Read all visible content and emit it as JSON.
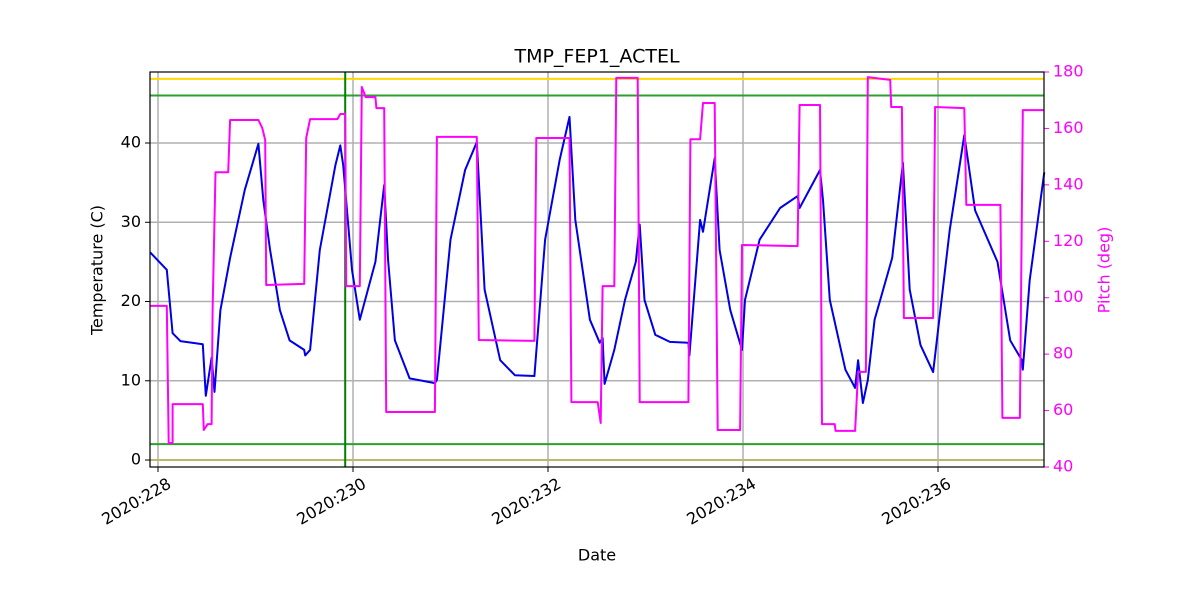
{
  "chart_data": {
    "type": "line",
    "title": "TMP_FEP1_ACTEL",
    "x_label": "Date",
    "y_label": "Temperature (C)",
    "y2_label": "Pitch (deg)",
    "xlim": [
      227.918,
      237.087
    ],
    "ylim": [
      -0.88,
      48.96
    ],
    "y2lim": [
      40,
      180
    ],
    "xticks": [
      {
        "value": 228,
        "label": "2020:228"
      },
      {
        "value": 230,
        "label": "2020:230"
      },
      {
        "value": 232,
        "label": "2020:232"
      },
      {
        "value": 234,
        "label": "2020:234"
      },
      {
        "value": 236,
        "label": "2020:236"
      }
    ],
    "yticks": [
      0,
      10,
      20,
      30,
      40
    ],
    "y2ticks": [
      40,
      60,
      80,
      100,
      120,
      140,
      160,
      180
    ],
    "grid": true,
    "hlines": [
      {
        "value": 48.1,
        "color": "#ffd700"
      },
      {
        "value": 46,
        "color": "#2ca02c"
      },
      {
        "value": 2,
        "color": "#2ca02c"
      },
      {
        "value": 0,
        "color": "#bdb76b"
      }
    ],
    "vlines": [
      {
        "value": 229.92,
        "color": "#008000"
      }
    ],
    "series": [
      {
        "name": "Temperature",
        "color": "#0000e6",
        "x": [
          227.92,
          228.09,
          228.15,
          228.23,
          228.46,
          228.49,
          228.55,
          228.58,
          228.64,
          228.74,
          228.89,
          229.03,
          229.08,
          229.15,
          229.25,
          229.35,
          229.5,
          229.51,
          229.56,
          229.66,
          229.82,
          229.87,
          229.9,
          229.99,
          230.07,
          230.23,
          230.32,
          230.36,
          230.43,
          230.58,
          230.84,
          230.86,
          231.0,
          231.15,
          231.27,
          231.35,
          231.51,
          231.66,
          231.86,
          231.97,
          232.12,
          232.22,
          232.28,
          232.43,
          232.53,
          232.56,
          232.58,
          232.68,
          232.79,
          232.9,
          232.94,
          232.99,
          233.1,
          233.25,
          233.44,
          233.45,
          233.56,
          233.59,
          233.71,
          233.76,
          233.87,
          233.99,
          234.02,
          234.17,
          234.38,
          234.56,
          234.58,
          234.79,
          234.82,
          234.89,
          235.05,
          235.15,
          235.18,
          235.23,
          235.28,
          235.35,
          235.53,
          235.64,
          235.71,
          235.82,
          235.95,
          235.97,
          236.12,
          236.27,
          236.38,
          236.61,
          236.74,
          236.86,
          236.87,
          236.94,
          237.09
        ],
        "values": [
          26.2,
          24.0,
          16.0,
          15.0,
          14.6,
          8.1,
          12.9,
          8.6,
          18.9,
          25.5,
          34.1,
          39.9,
          32.8,
          26.5,
          18.9,
          15.1,
          13.9,
          13.2,
          13.9,
          26.5,
          37.2,
          39.7,
          37.2,
          24.0,
          17.7,
          25.0,
          34.7,
          25.2,
          15.1,
          10.3,
          9.7,
          10.1,
          27.8,
          36.6,
          40.1,
          21.5,
          12.6,
          10.7,
          10.6,
          27.8,
          37.9,
          43.3,
          30.3,
          17.7,
          14.8,
          15.4,
          9.6,
          13.9,
          20.2,
          25.0,
          29.7,
          20.2,
          15.8,
          14.9,
          14.8,
          13.2,
          30.3,
          28.8,
          38.1,
          26.5,
          18.9,
          13.9,
          20.2,
          27.8,
          31.8,
          33.3,
          31.8,
          36.6,
          32.8,
          20.2,
          11.4,
          9.1,
          12.6,
          7.2,
          10.1,
          17.7,
          25.5,
          37.5,
          21.5,
          14.5,
          11.1,
          13.2,
          29.0,
          41.0,
          31.5,
          25.0,
          15.1,
          12.6,
          11.4,
          22.7,
          36.3
        ]
      },
      {
        "name": "Pitch",
        "color": "#ff00ff",
        "axis": "y2",
        "x": [
          227.92,
          228.09,
          228.11,
          228.15,
          228.15,
          228.46,
          228.47,
          228.51,
          228.55,
          228.56,
          228.59,
          228.72,
          228.74,
          229.03,
          229.07,
          229.1,
          229.11,
          229.5,
          229.52,
          229.56,
          229.84,
          229.87,
          229.92,
          229.93,
          230.07,
          230.09,
          230.13,
          230.23,
          230.24,
          230.32,
          230.34,
          230.84,
          230.86,
          231.27,
          231.29,
          231.86,
          231.88,
          232.22,
          232.24,
          232.51,
          232.54,
          232.56,
          232.68,
          232.7,
          232.92,
          232.94,
          233.44,
          233.46,
          233.56,
          233.59,
          233.71,
          233.74,
          233.97,
          233.99,
          234.56,
          234.58,
          234.79,
          234.81,
          234.94,
          234.95,
          235.15,
          235.18,
          235.26,
          235.28,
          235.51,
          235.52,
          235.63,
          235.65,
          235.95,
          235.97,
          236.27,
          236.29,
          236.64,
          236.66,
          236.84,
          236.87,
          237.09
        ],
        "values": [
          97.1,
          97.1,
          48.5,
          48.5,
          62.3,
          62.3,
          53.1,
          55.2,
          55.2,
          95.6,
          144.5,
          144.5,
          163.0,
          163.0,
          160.1,
          155.9,
          104.5,
          104.9,
          156.6,
          163.3,
          163.3,
          165.1,
          165.1,
          104.1,
          104.1,
          174.7,
          171.1,
          171.1,
          167.2,
          167.2,
          59.5,
          59.5,
          157.0,
          157.0,
          85.0,
          84.7,
          156.6,
          156.6,
          63.0,
          63.0,
          55.6,
          104.1,
          104.1,
          177.9,
          177.9,
          63.0,
          63.0,
          156.2,
          156.2,
          169.0,
          169.0,
          53.1,
          53.1,
          118.7,
          118.3,
          168.3,
          168.3,
          55.2,
          55.2,
          52.8,
          52.8,
          73.7,
          73.7,
          178.2,
          177.2,
          167.6,
          167.6,
          92.8,
          92.8,
          167.6,
          167.2,
          132.9,
          132.9,
          57.4,
          57.4,
          166.5,
          166.5
        ]
      }
    ]
  }
}
